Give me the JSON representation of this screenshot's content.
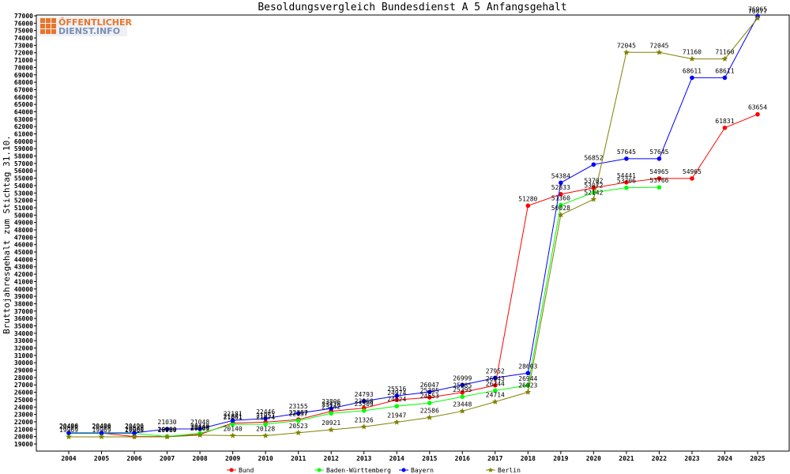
{
  "logo": {
    "line1": "ÖFFENTLICHER",
    "line2": "DIENST.INFO"
  },
  "chart_data": {
    "type": "line",
    "title": "Besoldungsvergleich Bundesdienst A 5 Anfangsgehalt",
    "xlabel": "",
    "ylabel": "Bruttojahresgehalt zum Stichtag 31.10.",
    "ylim": [
      19000,
      77000
    ],
    "ytick_step": 1000,
    "grid": false,
    "legend_position": "bottom",
    "categories": [
      "2004",
      "2005",
      "2006",
      "2007",
      "2008",
      "2009",
      "2010",
      "2011",
      "2012",
      "2013",
      "2014",
      "2015",
      "2016",
      "2017",
      "2018",
      "2019",
      "2020",
      "2021",
      "2022",
      "2023",
      "2024",
      "2025"
    ],
    "series": [
      {
        "name": "Bund",
        "color": "#ff0000",
        "marker": "circle",
        "values": [
          20466,
          20466,
          20000,
          20000,
          20300,
          21841,
          21951,
          22307,
          23426,
          23860,
          24974,
          25305,
          25985,
          26943,
          51280,
          52833,
          53702,
          54441,
          54965,
          54965,
          61831,
          63654
        ]
      },
      {
        "name": "Baden-Württemberg",
        "color": "#00ff00",
        "marker": "circle",
        "values": [
          20429,
          20429,
          20429,
          20020,
          20440,
          21661,
          21674,
          22157,
          23142,
          23509,
          24124,
          24553,
          25395,
          26244,
          26944,
          51360,
          53072,
          53706,
          53766,
          null,
          null,
          null
        ]
      },
      {
        "name": "Bayern",
        "color": "#0000ff",
        "marker": "circle",
        "values": [
          20496,
          20496,
          20496,
          21030,
          21048,
          22181,
          22446,
          23155,
          23806,
          24793,
          25516,
          26047,
          26999,
          27952,
          28603,
          54384,
          56852,
          57645,
          57645,
          68611,
          68611,
          76965
        ]
      },
      {
        "name": "Berlin",
        "color": "#808000",
        "marker": "star",
        "values": [
          19969,
          19969,
          19969,
          19969,
          20203,
          20140,
          20128,
          20523,
          20921,
          21326,
          21947,
          22586,
          23448,
          24714,
          26023,
          50028,
          52142,
          72045,
          72045,
          71160,
          71160,
          76677
        ]
      }
    ]
  }
}
